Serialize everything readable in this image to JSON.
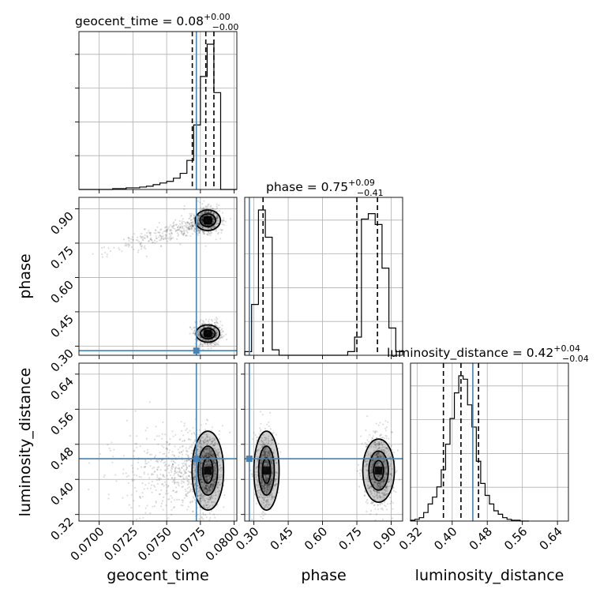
{
  "chart_data": {
    "type": "corner",
    "parameters": [
      {
        "key": "geocent_time",
        "label": "geocent_time",
        "range": [
          0.0685,
          0.0802
        ],
        "ticks": [
          0.07,
          0.0725,
          0.075,
          0.0775,
          0.08
        ],
        "tick_labels": [
          "0.0700",
          "0.0725",
          "0.0750",
          "0.0775",
          "0.0800"
        ],
        "truth": 0.0772
      },
      {
        "key": "phase",
        "label": "phase",
        "range": [
          0.26,
          0.95
        ],
        "ticks": [
          0.3,
          0.45,
          0.6,
          0.75,
          0.9
        ],
        "tick_labels": [
          "0.30",
          "0.45",
          "0.60",
          "0.75",
          "0.90"
        ],
        "truth": 0.28
      },
      {
        "key": "luminosity_distance",
        "label": "luminosity_distance",
        "range": [
          0.305,
          0.665
        ],
        "ticks": [
          0.32,
          0.4,
          0.48,
          0.56,
          0.64
        ],
        "tick_labels": [
          "0.32",
          "0.40",
          "0.48",
          "0.56",
          "0.64"
        ],
        "truth": 0.447
      }
    ],
    "titles": [
      {
        "main": "geocent_time = 0.08",
        "plus": "+0.00",
        "minus": "−0.00"
      },
      {
        "main": "phase = 0.75",
        "plus": "+0.09",
        "minus": "−0.41"
      },
      {
        "main": "luminosity_distance = 0.42",
        "plus": "+0.04",
        "minus": "−0.04"
      }
    ],
    "histograms": [
      {
        "edges": [
          0.0685,
          0.069,
          0.0695,
          0.07,
          0.0705,
          0.071,
          0.0715,
          0.072,
          0.0725,
          0.073,
          0.0735,
          0.074,
          0.0745,
          0.075,
          0.0755,
          0.076,
          0.0765,
          0.077,
          0.0775,
          0.078,
          0.0785,
          0.079,
          0.0795,
          0.08,
          0.0802
        ],
        "counts": [
          0,
          0,
          0,
          0,
          0,
          0.5,
          0.5,
          1,
          1,
          1.5,
          2,
          3,
          4,
          5,
          7,
          10,
          18,
          40,
          70,
          90,
          60,
          0,
          0,
          0
        ],
        "quantiles": [
          0.0769,
          0.0779,
          0.0785
        ]
      },
      {
        "edges": [
          0.26,
          0.29,
          0.32,
          0.35,
          0.38,
          0.41,
          0.44,
          0.47,
          0.5,
          0.53,
          0.56,
          0.59,
          0.62,
          0.65,
          0.68,
          0.71,
          0.74,
          0.77,
          0.8,
          0.83,
          0.86,
          0.89,
          0.92,
          0.95
        ],
        "counts": [
          2,
          28,
          80,
          65,
          3,
          0,
          0,
          0,
          0,
          0,
          0,
          0,
          0,
          0,
          0,
          2,
          10,
          75,
          78,
          72,
          48,
          15,
          2
        ],
        "quantiles": [
          0.34,
          0.75,
          0.84
        ]
      },
      {
        "edges": [
          0.305,
          0.315,
          0.325,
          0.335,
          0.345,
          0.355,
          0.365,
          0.375,
          0.385,
          0.395,
          0.405,
          0.415,
          0.425,
          0.435,
          0.445,
          0.455,
          0.465,
          0.475,
          0.485,
          0.495,
          0.505,
          0.515,
          0.525,
          0.535,
          0.545,
          0.555,
          0.565,
          0.575
        ],
        "counts": [
          0.5,
          1,
          2,
          5,
          10,
          14,
          20,
          30,
          45,
          60,
          75,
          85,
          83,
          68,
          55,
          35,
          22,
          15,
          10,
          6,
          4,
          2,
          1,
          0.5,
          0.5,
          0,
          0
        ],
        "quantiles": [
          0.38,
          0.42,
          0.46
        ]
      }
    ],
    "modes": [
      {
        "mean": [
          0.07805,
          0.85
        ],
        "sd": [
          0.00045,
          0.028
        ],
        "weight": 0.45
      },
      {
        "mean": [
          0.07805,
          0.355
        ],
        "sd": [
          0.00045,
          0.025
        ],
        "weight": 0.35
      },
      {
        "mean": [
          0.0738,
          0.8
        ],
        "sd": [
          0.0022,
          0.03
        ],
        "weight": 0.2
      }
    ],
    "ld_mean": 0.42,
    "ld_sd": 0.04,
    "grid": true
  }
}
